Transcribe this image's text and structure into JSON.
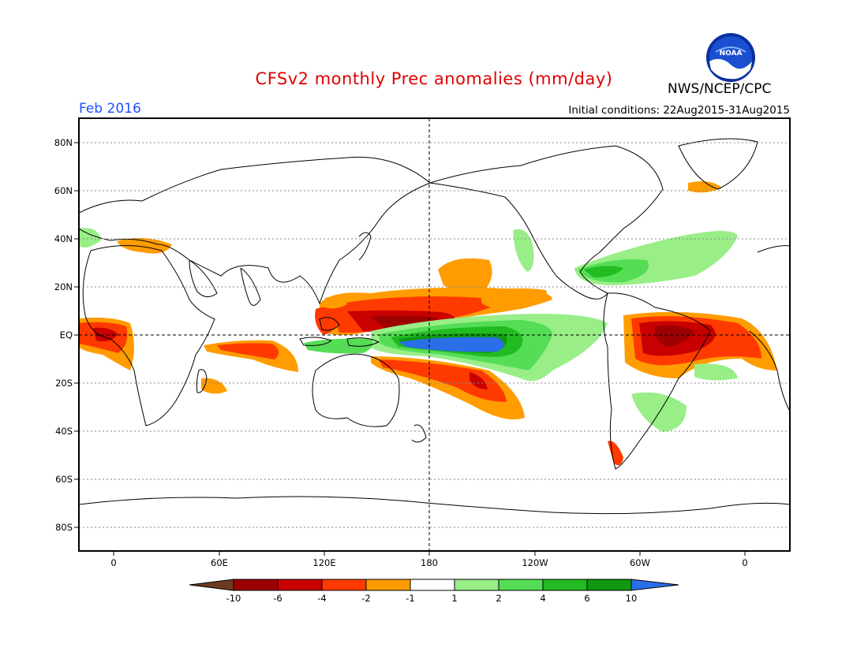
{
  "header": {
    "title": "CFSv2 monthly Prec anomalies (mm/day)",
    "agency": "NWS/NCEP/CPC",
    "logo_text": "NOAA",
    "target_month": "Feb 2016",
    "initial_conditions": "Initial conditions: 22Aug2015-31Aug2015"
  },
  "axes": {
    "lat_labels": [
      "80N",
      "60N",
      "40N",
      "20N",
      "EQ",
      "20S",
      "40S",
      "60S",
      "80S"
    ],
    "lon_labels": [
      "0",
      "60E",
      "120E",
      "180",
      "120W",
      "60W",
      "0"
    ]
  },
  "colorbar": {
    "labels": [
      "-10",
      "-6",
      "-4",
      "-2",
      "-1",
      "1",
      "2",
      "4",
      "6",
      "10"
    ],
    "colors": {
      "below_min": "#6e3a22",
      "bins": [
        "#9c0000",
        "#c80000",
        "#ff3a00",
        "#ff9c00",
        "#ffffff",
        "#99ee88",
        "#55dd55",
        "#22bb22",
        "#119911"
      ],
      "above_max": "#2a6ee8"
    }
  },
  "colors": {
    "title": "#e00000",
    "month": "#1f4fff"
  }
}
